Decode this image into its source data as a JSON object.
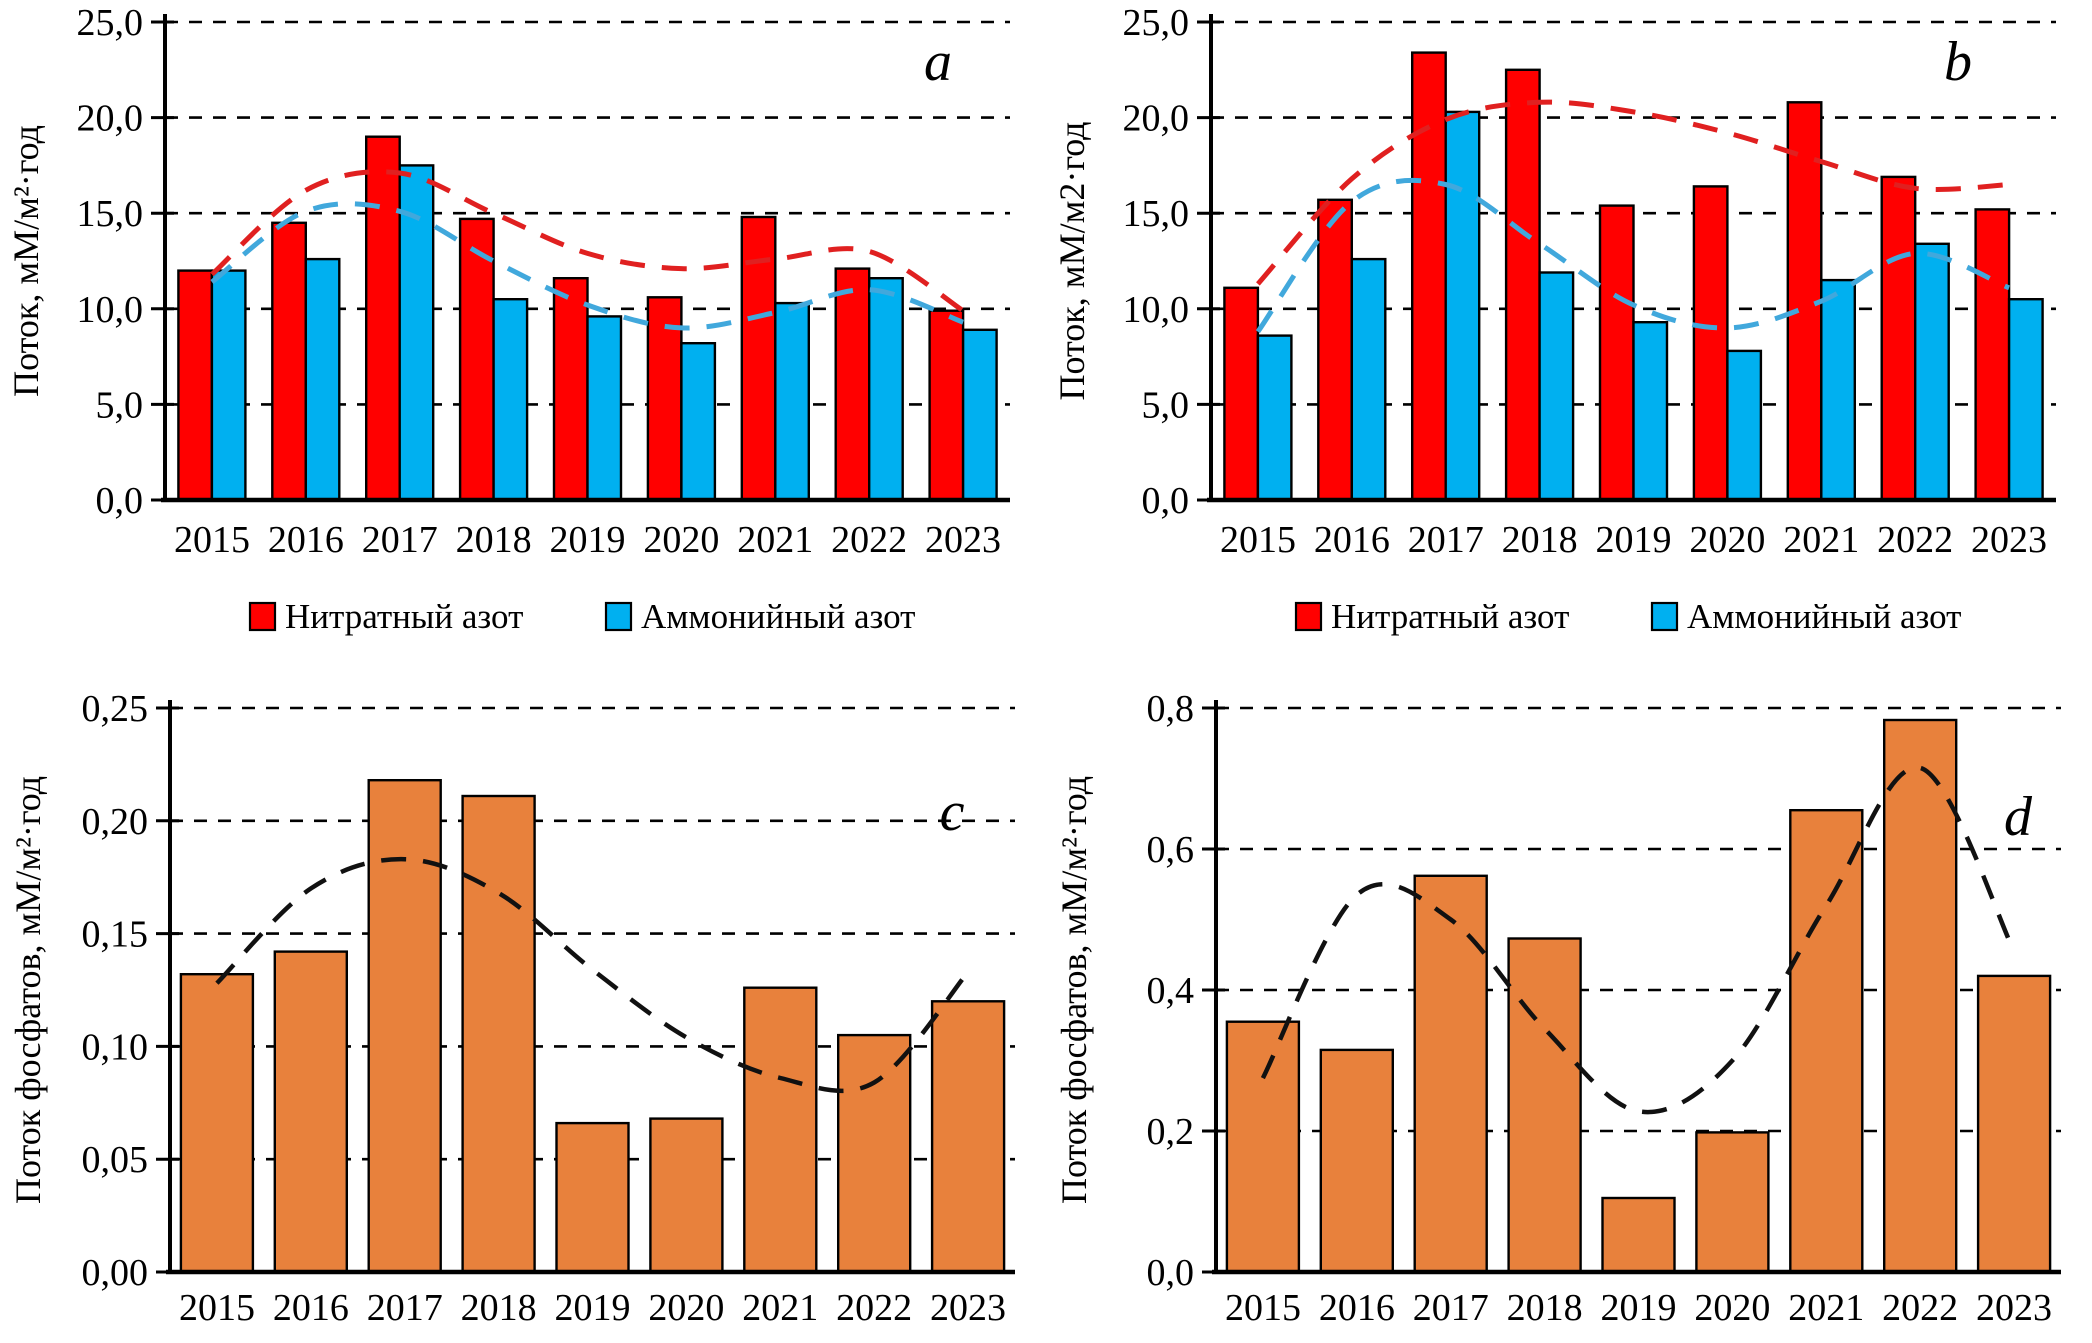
{
  "figure": {
    "background": "#ffffff",
    "years": [
      "2015",
      "2016",
      "2017",
      "2018",
      "2019",
      "2020",
      "2021",
      "2022",
      "2023"
    ]
  },
  "colors": {
    "nitrate_bar": "#FF0000",
    "ammonium_bar": "#00B0F0",
    "phosphate_bar": "#E8813C",
    "nitrate_trend": "#E02020",
    "ammonium_trend": "#41A8DC",
    "phosphate_trend": "#111111",
    "axis": "#000000"
  },
  "chart_data": [
    {
      "id": "a",
      "type": "bar",
      "panel_label": "a",
      "ylabel": "Поток, мМ/м²·год",
      "ylim": [
        0,
        25
      ],
      "yticks": [
        "0,0",
        "5,0",
        "10,0",
        "15,0",
        "20,0",
        "25,0"
      ],
      "categories": [
        "2015",
        "2016",
        "2017",
        "2018",
        "2019",
        "2020",
        "2021",
        "2022",
        "2023"
      ],
      "series": [
        {
          "name": "Нитратный азот",
          "color": "#FF0000",
          "values": [
            12.0,
            14.5,
            19.0,
            14.7,
            11.6,
            10.6,
            14.8,
            12.1,
            9.9
          ]
        },
        {
          "name": "Аммонийный азот",
          "color": "#00B0F0",
          "values": [
            12.0,
            12.6,
            17.5,
            10.5,
            9.6,
            8.2,
            10.3,
            11.6,
            8.9
          ]
        }
      ],
      "trends": [
        {
          "for": "Нитратный азот",
          "color": "#E02020",
          "style": "dashed",
          "values": [
            11.8,
            16.2,
            17.1,
            15.0,
            12.9,
            12.1,
            12.6,
            13.0,
            9.9
          ]
        },
        {
          "for": "Аммонийный азот",
          "color": "#41A8DC",
          "style": "dashed",
          "values": [
            11.4,
            15.1,
            15.1,
            12.5,
            10.2,
            9.0,
            9.8,
            11.0,
            9.3
          ]
        }
      ],
      "legend": [
        "Нитратный азот",
        "Аммонийный азот"
      ],
      "grid": "dashed-horizontal",
      "legend_position": "bottom"
    },
    {
      "id": "b",
      "type": "bar",
      "panel_label": "b",
      "ylabel": "Поток, мМ/м2·год",
      "ylim": [
        0,
        25
      ],
      "yticks": [
        "0,0",
        "5,0",
        "10,0",
        "15,0",
        "20,0",
        "25,0"
      ],
      "categories": [
        "2015",
        "2016",
        "2017",
        "2018",
        "2019",
        "2020",
        "2021",
        "2022",
        "2023"
      ],
      "series": [
        {
          "name": "Нитратный азот",
          "color": "#FF0000",
          "values": [
            11.1,
            15.7,
            23.4,
            22.5,
            15.4,
            16.4,
            20.8,
            16.9,
            15.2
          ]
        },
        {
          "name": "Аммонийный азот",
          "color": "#00B0F0",
          "values": [
            8.6,
            12.6,
            20.3,
            11.9,
            9.3,
            7.8,
            11.5,
            13.4,
            10.5
          ]
        }
      ],
      "trends": [
        {
          "for": "Нитратный азот",
          "color": "#E02020",
          "style": "dashed",
          "values": [
            11.3,
            16.8,
            19.9,
            20.8,
            20.3,
            19.2,
            17.7,
            16.3,
            16.5
          ]
        },
        {
          "for": "Аммонийный азот",
          "color": "#41A8DC",
          "style": "dashed",
          "values": [
            8.8,
            15.6,
            16.5,
            13.4,
            10.2,
            9.0,
            10.4,
            12.9,
            11.1
          ]
        }
      ],
      "legend": [
        "Нитратный азот",
        "Аммонийный азот"
      ],
      "grid": "dashed-horizontal",
      "legend_position": "bottom"
    },
    {
      "id": "c",
      "type": "bar",
      "panel_label": "c",
      "ylabel": "Поток фосфатов, мМ/м²·год",
      "ylim": [
        0,
        0.25
      ],
      "yticks": [
        "0,00",
        "0,05",
        "0,10",
        "0,15",
        "0,20",
        "0,25"
      ],
      "categories": [
        "2015",
        "2016",
        "2017",
        "2018",
        "2019",
        "2020",
        "2021",
        "2022",
        "2023"
      ],
      "series": [
        {
          "name": "Поток фосфатов",
          "color": "#E8813C",
          "values": [
            0.132,
            0.142,
            0.218,
            0.211,
            0.066,
            0.068,
            0.126,
            0.105,
            0.12
          ]
        }
      ],
      "trends": [
        {
          "for": "Поток фосфатов",
          "color": "#111111",
          "style": "dashed",
          "values": [
            0.128,
            0.17,
            0.183,
            0.168,
            0.134,
            0.104,
            0.086,
            0.084,
            0.133
          ]
        }
      ],
      "legend": [],
      "grid": "dashed-horizontal",
      "legend_position": "none"
    },
    {
      "id": "d",
      "type": "bar",
      "panel_label": "d",
      "ylabel": "Поток фосфатов, мМ/м²·год",
      "ylim": [
        0,
        0.8
      ],
      "yticks": [
        "0,0",
        "0,2",
        "0,4",
        "0,6",
        "0,8"
      ],
      "categories": [
        "2015",
        "2016",
        "2017",
        "2018",
        "2019",
        "2020",
        "2021",
        "2022",
        "2023"
      ],
      "series": [
        {
          "name": "Поток фосфатов",
          "color": "#E8813C",
          "values": [
            0.355,
            0.315,
            0.562,
            0.473,
            0.105,
            0.198,
            0.655,
            0.783,
            0.42
          ]
        }
      ],
      "trends": [
        {
          "for": "Поток фосфатов",
          "color": "#111111",
          "style": "dashed",
          "values": [
            0.275,
            0.535,
            0.5,
            0.345,
            0.228,
            0.3,
            0.52,
            0.715,
            0.455
          ]
        }
      ],
      "legend": [],
      "grid": "dashed-horizontal",
      "legend_position": "none"
    }
  ]
}
